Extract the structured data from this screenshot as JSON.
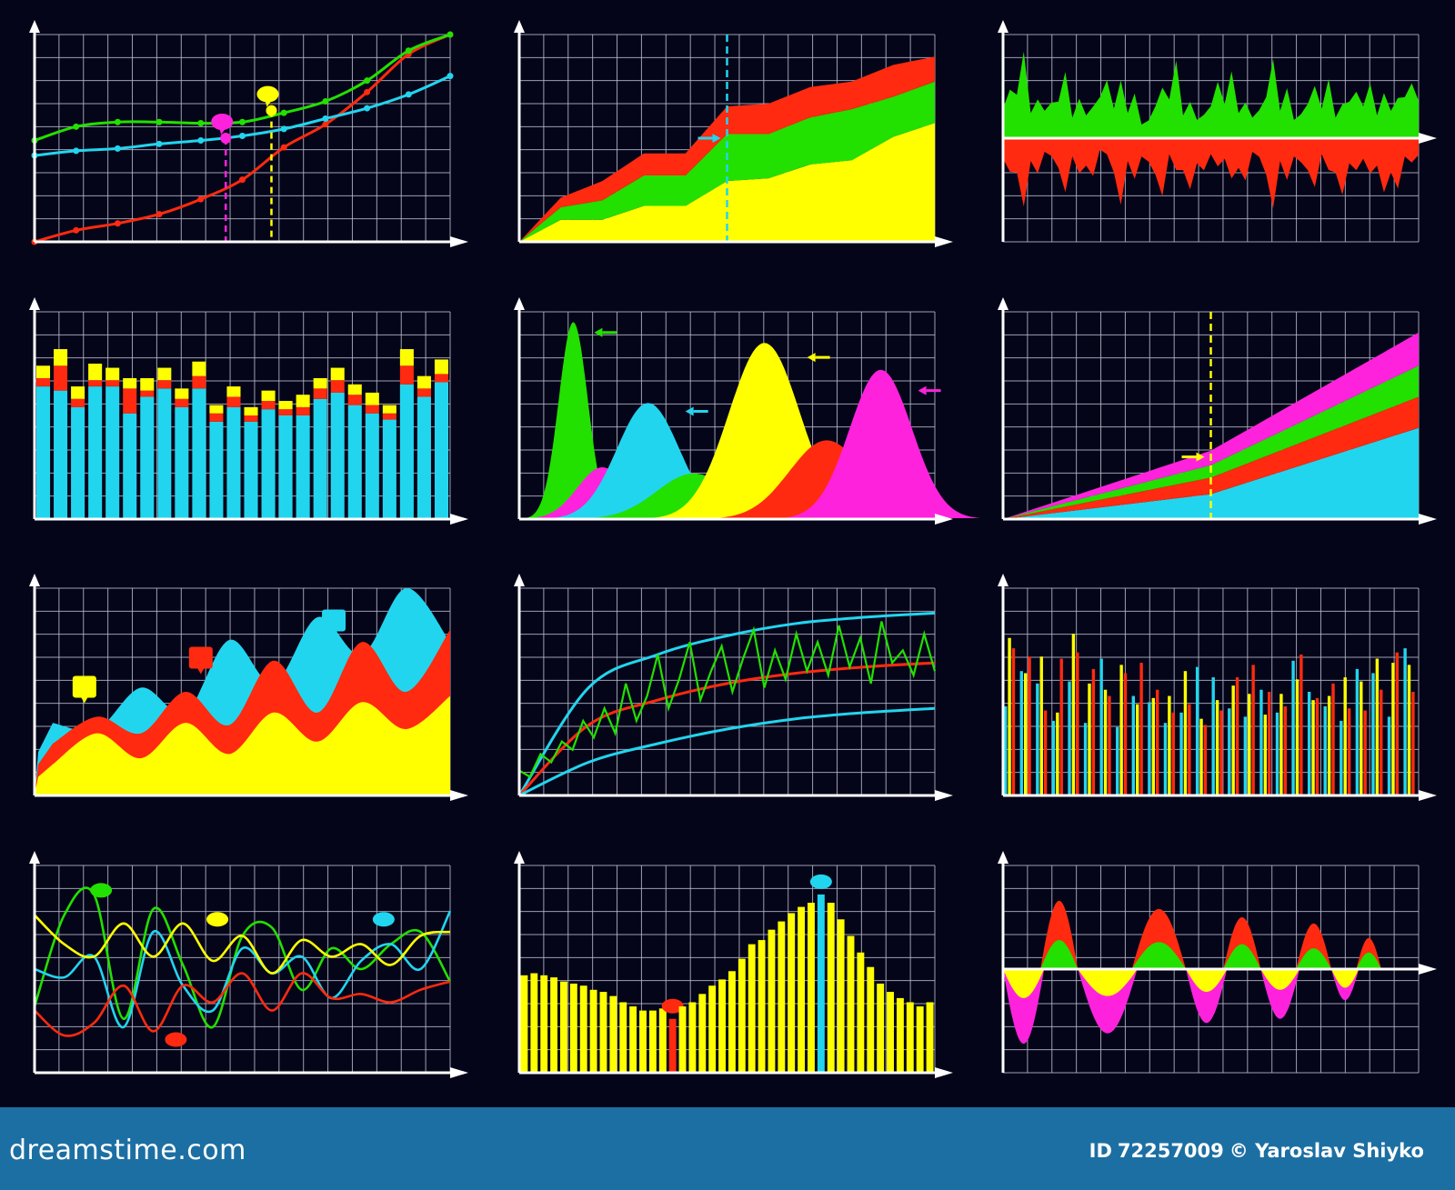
{
  "colors": {
    "background": "#05051a",
    "grid": "#b9b9cc",
    "axis": "#ffffff",
    "red": "#ff2a0f",
    "green": "#22e000",
    "cyan": "#22d5ee",
    "yellow": "#ffff00",
    "magenta": "#ff22dd",
    "footer": "#1c6fa3"
  },
  "footer": {
    "logo": "dreamstime.com",
    "id_label": "ID",
    "id_value": "72257009",
    "author": "© Yaroslav Shiyko"
  },
  "chart_data": [
    {
      "type": "line",
      "x": [
        0,
        1,
        2,
        3,
        4,
        5,
        6,
        7,
        8,
        9,
        10
      ],
      "series": [
        {
          "color": "red",
          "values": [
            0,
            1,
            1.6,
            2.4,
            3.7,
            5.4,
            8.2,
            10.2,
            13,
            16.3,
            18
          ]
        },
        {
          "color": "green",
          "values": [
            8.8,
            10,
            10.4,
            10.4,
            10.3,
            10.4,
            11.2,
            12.2,
            14,
            16.6,
            18
          ]
        },
        {
          "color": "cyan",
          "values": [
            7.5,
            7.9,
            8.1,
            8.5,
            8.8,
            9.2,
            9.8,
            10.7,
            11.6,
            12.8,
            14.4
          ]
        }
      ],
      "annotations": [
        {
          "x": 4.6,
          "y": 9.0,
          "color": "magenta"
        },
        {
          "x": 5.7,
          "y": 11.4,
          "color": "yellow"
        }
      ],
      "ylim": [
        0,
        18
      ],
      "grid": true
    },
    {
      "type": "area",
      "x": [
        0,
        1,
        2,
        3,
        4,
        5,
        6,
        7,
        8,
        9,
        10
      ],
      "series": [
        {
          "color": "yellow",
          "values": [
            0,
            1.6,
            1.6,
            2.6,
            2.6,
            4.4,
            4.6,
            5.6,
            5.9,
            7.6,
            8.6
          ]
        },
        {
          "color": "green",
          "values": [
            0,
            0.9,
            1.4,
            2.2,
            2.2,
            3.4,
            3.2,
            3.4,
            3.7,
            2.9,
            3.0
          ]
        },
        {
          "color": "red",
          "values": [
            0,
            0.7,
            1.4,
            1.6,
            1.6,
            2.0,
            2.2,
            2.2,
            2.0,
            2.3,
            1.8
          ]
        }
      ],
      "marker_x": 5,
      "ylim": [
        0,
        15
      ],
      "grid": true
    },
    {
      "type": "area",
      "baseline_fraction": 0.5,
      "series": [
        {
          "color": "green",
          "values": [
            2.6,
            3.8,
            2.2,
            2.4,
            3.2,
            1.8,
            2.0,
            3.6,
            2.6,
            2.2,
            1.2,
            2.8,
            3.4,
            2.0,
            1.6,
            2.8,
            3.0,
            2.2,
            1.8,
            3.6,
            2.4,
            1.6,
            3.0,
            2.6,
            1.8,
            3.2,
            2.8,
            2.0,
            2.4,
            3.6
          ]
        },
        {
          "color": "red",
          "values": [
            -1.8,
            -3.0,
            -2.0,
            -1.2,
            -2.6,
            -1.6,
            -2.4,
            -1.0,
            -3.0,
            -2.0,
            -1.6,
            -3.2,
            -1.4,
            -2.8,
            -2.2,
            -1.4,
            -1.8,
            -2.6,
            -1.2,
            -3.2,
            -2.0,
            -1.6,
            -2.8,
            -1.4,
            -3.0,
            -2.2,
            -1.8,
            -2.4,
            -3.0,
            -1.6
          ]
        }
      ],
      "ylim": [
        -5,
        5
      ],
      "grid": true
    },
    {
      "type": "bar",
      "stacked": true,
      "series": [
        {
          "color": "cyan",
          "values": [
            6.4,
            6.2,
            5.4,
            6.4,
            6.4,
            5.1,
            5.9,
            6.3,
            5.4,
            6.3,
            4.7,
            5.4,
            4.7,
            5.3,
            5.0,
            5.0,
            5.8,
            6.1,
            5.5,
            5.1,
            4.8,
            6.5,
            5.9,
            6.6
          ]
        },
        {
          "color": "red",
          "values": [
            0.4,
            1.2,
            0.4,
            0.3,
            0.3,
            1.2,
            0.3,
            0.4,
            0.4,
            0.6,
            0.4,
            0.5,
            0.3,
            0.4,
            0.3,
            0.4,
            0.5,
            0.6,
            0.5,
            0.4,
            0.3,
            0.9,
            0.4,
            0.4
          ]
        },
        {
          "color": "yellow",
          "values": [
            0.6,
            0.8,
            0.6,
            0.8,
            0.6,
            0.5,
            0.6,
            0.6,
            0.5,
            0.7,
            0.4,
            0.5,
            0.4,
            0.5,
            0.4,
            0.6,
            0.5,
            0.6,
            0.5,
            0.6,
            0.4,
            0.8,
            0.6,
            0.7
          ]
        }
      ],
      "ylim": [
        0,
        10
      ],
      "grid": true
    },
    {
      "type": "area",
      "distribution": true,
      "series": [
        {
          "color": "green",
          "mean": 1.3,
          "sd": 0.35,
          "peak": 9.5,
          "color_name": "green"
        },
        {
          "color": "magenta",
          "mean": 2.0,
          "sd": 0.6,
          "peak": 2.5
        },
        {
          "color": "cyan",
          "mean": 3.1,
          "sd": 0.75,
          "peak": 5.6
        },
        {
          "color": "green",
          "mean": 4.2,
          "sd": 0.9,
          "peak": 2.2
        },
        {
          "color": "yellow",
          "mean": 5.9,
          "sd": 0.85,
          "peak": 8.5
        },
        {
          "color": "red",
          "mean": 7.4,
          "sd": 0.9,
          "peak": 3.8
        },
        {
          "color": "magenta",
          "mean": 8.7,
          "sd": 0.75,
          "peak": 7.2
        }
      ],
      "xlim": [
        0,
        10
      ],
      "ylim": [
        0,
        10
      ],
      "grid": true
    },
    {
      "type": "area",
      "x": [
        0,
        5,
        10
      ],
      "series": [
        {
          "color": "cyan",
          "values": [
            0,
            1.2,
            4.4
          ]
        },
        {
          "color": "red",
          "values": [
            0,
            0.8,
            1.5
          ]
        },
        {
          "color": "green",
          "values": [
            0,
            0.6,
            1.5
          ]
        },
        {
          "color": "magenta",
          "values": [
            0,
            0.7,
            1.6
          ]
        }
      ],
      "marker_x": 5,
      "ylim": [
        0,
        10
      ],
      "grid": true
    },
    {
      "type": "area",
      "wave": true,
      "series": [
        {
          "color": "yellow",
          "values": [
            1.5,
            3.0,
            1.8,
            3.5,
            2.0,
            4.0,
            2.6,
            4.5,
            3.2,
            4.8
          ]
        },
        {
          "color": "red",
          "values": [
            2.5,
            3.8,
            3.0,
            5.0,
            3.4,
            6.5,
            4.0,
            7.4,
            5.0,
            8.0
          ]
        },
        {
          "color": "cyan",
          "values": [
            3.5,
            3.2,
            5.2,
            4.0,
            7.5,
            5.4,
            8.6,
            6.8,
            10.0,
            7.4
          ]
        }
      ],
      "annotations": [
        {
          "x": 1.2,
          "y": 5.2,
          "color": "yellow"
        },
        {
          "x": 4.0,
          "y": 6.6,
          "color": "red"
        },
        {
          "x": 7.2,
          "y": 8.4,
          "color": "cyan"
        }
      ],
      "ylim": [
        0,
        10
      ],
      "grid": true
    },
    {
      "type": "line",
      "series": [
        {
          "color": "cyan",
          "curve": "upper",
          "values": [
            0,
            5.2,
            6.8,
            7.7,
            8.3,
            8.6,
            8.8
          ]
        },
        {
          "color": "red",
          "curve": "middle",
          "values": [
            0,
            3.4,
            4.6,
            5.4,
            5.9,
            6.2,
            6.4
          ]
        },
        {
          "color": "cyan",
          "curve": "lower",
          "values": [
            0,
            1.6,
            2.5,
            3.2,
            3.7,
            4.0,
            4.2
          ]
        },
        {
          "color": "green",
          "curve": "noisy",
          "values": [
            1.2,
            0.9,
            2.0,
            1.6,
            2.6,
            2.2,
            3.6,
            2.8,
            4.2,
            3.0,
            5.4,
            3.6,
            4.8,
            6.8,
            4.2,
            5.6,
            7.4,
            4.6,
            6.0,
            7.2,
            5.0,
            6.6,
            8.0,
            5.2,
            7.0,
            5.6,
            7.8,
            6.0,
            7.4,
            5.8,
            8.2,
            6.2,
            7.6,
            5.4,
            8.4,
            6.4,
            7.0,
            5.8,
            7.8,
            6.0
          ]
        }
      ],
      "ylim": [
        0,
        10
      ],
      "grid": true
    },
    {
      "type": "bar",
      "grouped": true,
      "series": [
        {
          "color": "cyan",
          "values": [
            4.3,
            6.0,
            5.4,
            3.6,
            5.5,
            3.5,
            6.6,
            3.3,
            4.8,
            4.5,
            3.5,
            4.0,
            6.2,
            5.7,
            4.2,
            3.8,
            5.1,
            4.0,
            6.5,
            5.0,
            4.3,
            3.6,
            6.1,
            5.9,
            3.8,
            7.1
          ]
        },
        {
          "color": "yellow",
          "values": [
            7.6,
            5.9,
            6.7,
            4.0,
            7.8,
            5.4,
            5.1,
            6.3,
            4.4,
            4.7,
            4.8,
            6.0,
            3.7,
            4.6,
            5.3,
            4.9,
            3.9,
            4.9,
            5.6,
            4.6,
            4.8,
            5.7,
            5.5,
            6.6,
            6.4,
            6.3
          ]
        },
        {
          "color": "red",
          "values": [
            7.1,
            6.7,
            4.1,
            6.6,
            6.9,
            6.1,
            4.8,
            5.9,
            6.4,
            5.1,
            4.0,
            4.4,
            3.4,
            4.1,
            5.7,
            6.3,
            5.0,
            4.3,
            6.8,
            4.7,
            5.4,
            4.2,
            4.1,
            5.1,
            6.9,
            5.0
          ]
        }
      ],
      "ylim": [
        0,
        10
      ],
      "grid": true
    },
    {
      "type": "line",
      "series": [
        {
          "color": "green",
          "values": [
            3.2,
            7.6,
            8.6,
            2.6,
            7.9,
            5.2,
            2.2,
            6.6,
            7.0,
            4.0,
            6.0,
            5.0,
            6.2,
            6.8,
            4.4
          ]
        },
        {
          "color": "cyan",
          "values": [
            5.0,
            4.6,
            5.6,
            2.2,
            6.8,
            4.2,
            3.0,
            6.0,
            4.8,
            5.6,
            3.6,
            5.4,
            6.2,
            5.0,
            7.8
          ]
        },
        {
          "color": "yellow",
          "values": [
            7.6,
            6.2,
            5.6,
            7.2,
            5.6,
            7.2,
            5.4,
            6.6,
            4.8,
            6.4,
            5.6,
            6.2,
            5.2,
            6.6,
            6.8
          ]
        },
        {
          "color": "red",
          "values": [
            3.0,
            1.8,
            2.4,
            4.2,
            2.0,
            4.2,
            3.4,
            4.8,
            3.0,
            4.8,
            3.6,
            3.8,
            3.4,
            4.0,
            4.4
          ]
        }
      ],
      "annotations": [
        {
          "x": 1.6,
          "y": 8.8,
          "color": "green"
        },
        {
          "x": 4.4,
          "y": 7.4,
          "color": "yellow"
        },
        {
          "x": 3.4,
          "y": 1.6,
          "color": "red"
        },
        {
          "x": 8.4,
          "y": 7.4,
          "color": "cyan"
        }
      ],
      "ylim": [
        0,
        10
      ],
      "grid": true
    },
    {
      "type": "bar",
      "values": [
        4.7,
        4.8,
        4.7,
        4.6,
        4.4,
        4.3,
        4.2,
        4.0,
        3.9,
        3.7,
        3.4,
        3.2,
        3.0,
        3.0,
        3.1,
        2.6,
        3.2,
        3.4,
        3.8,
        4.2,
        4.5,
        4.9,
        5.5,
        6.2,
        6.4,
        6.9,
        7.3,
        7.7,
        8.0,
        8.2,
        8.6,
        8.2,
        7.4,
        6.6,
        5.8,
        5.1,
        4.3,
        3.9,
        3.6,
        3.4,
        3.2,
        3.4
      ],
      "highlights": [
        {
          "index": 15,
          "color": "red"
        },
        {
          "index": 30,
          "color": "cyan"
        }
      ],
      "bar_color": "yellow",
      "ylim": [
        0,
        10
      ],
      "grid": true
    },
    {
      "type": "area",
      "wave": true,
      "baseline_fraction": 0.5,
      "series": [
        {
          "color": "magenta",
          "values": [
            -3.6,
            -3.1,
            -2.6,
            -2.4,
            -1.5
          ]
        },
        {
          "color": "yellow",
          "values": [
            -1.4,
            -1.3,
            -1.1,
            -1.0,
            -0.9
          ]
        },
        {
          "color": "red",
          "values": [
            3.3,
            2.9,
            2.5,
            2.2,
            1.5
          ]
        },
        {
          "color": "green",
          "values": [
            1.4,
            1.3,
            1.2,
            1.0,
            0.8
          ]
        }
      ],
      "ylim": [
        -5,
        5
      ],
      "grid": true
    }
  ]
}
